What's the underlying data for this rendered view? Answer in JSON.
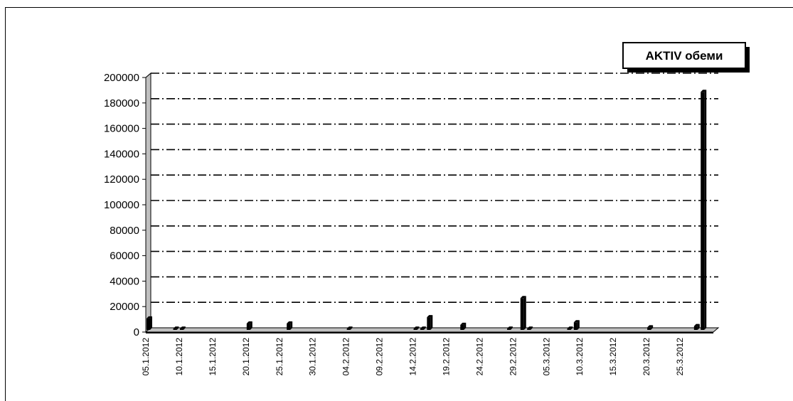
{
  "chart_data": {
    "type": "bar",
    "style": "3d-column",
    "legend": {
      "label": "AKTIV обеми",
      "placement": "top-right"
    },
    "ylim": [
      0,
      200000
    ],
    "y_ticks": [
      "0",
      "20000",
      "40000",
      "60000",
      "80000",
      "100000",
      "120000",
      "140000",
      "160000",
      "180000",
      "200000"
    ],
    "grid": "horizontal dash-dot",
    "x_ticks": [
      "05.1.2012",
      "10.1.2012",
      "15.1.2012",
      "20.1.2012",
      "25.1.2012",
      "30.1.2012",
      "04.2.2012",
      "09.2.2012",
      "14.2.2012",
      "19.2.2012",
      "24.2.2012",
      "29.2.2012",
      "05.3.2012",
      "10.3.2012",
      "15.3.2012",
      "20.3.2012",
      "25.3.2012"
    ],
    "x_start": "2012-01-05",
    "x_end": "2012-03-30",
    "bars": [
      {
        "date": "2012-01-05",
        "value": 9000
      },
      {
        "date": "2012-01-09",
        "value": 1000
      },
      {
        "date": "2012-01-10",
        "value": 1000
      },
      {
        "date": "2012-01-20",
        "value": 5000
      },
      {
        "date": "2012-01-26",
        "value": 5000
      },
      {
        "date": "2012-02-04",
        "value": 1000
      },
      {
        "date": "2012-02-14",
        "value": 1000
      },
      {
        "date": "2012-02-15",
        "value": 1000
      },
      {
        "date": "2012-02-16",
        "value": 10000
      },
      {
        "date": "2012-02-21",
        "value": 4000
      },
      {
        "date": "2012-02-28",
        "value": 1000
      },
      {
        "date": "2012-03-01",
        "value": 25000
      },
      {
        "date": "2012-03-02",
        "value": 1000
      },
      {
        "date": "2012-03-08",
        "value": 1000
      },
      {
        "date": "2012-03-09",
        "value": 6000
      },
      {
        "date": "2012-03-20",
        "value": 2000
      },
      {
        "date": "2012-03-27",
        "value": 3000
      },
      {
        "date": "2012-03-28",
        "value": 187000
      }
    ],
    "colors": {
      "bar": "#000000",
      "floor": "#c0c0c0",
      "wall": "#ffffff",
      "grid": "#000000"
    }
  }
}
